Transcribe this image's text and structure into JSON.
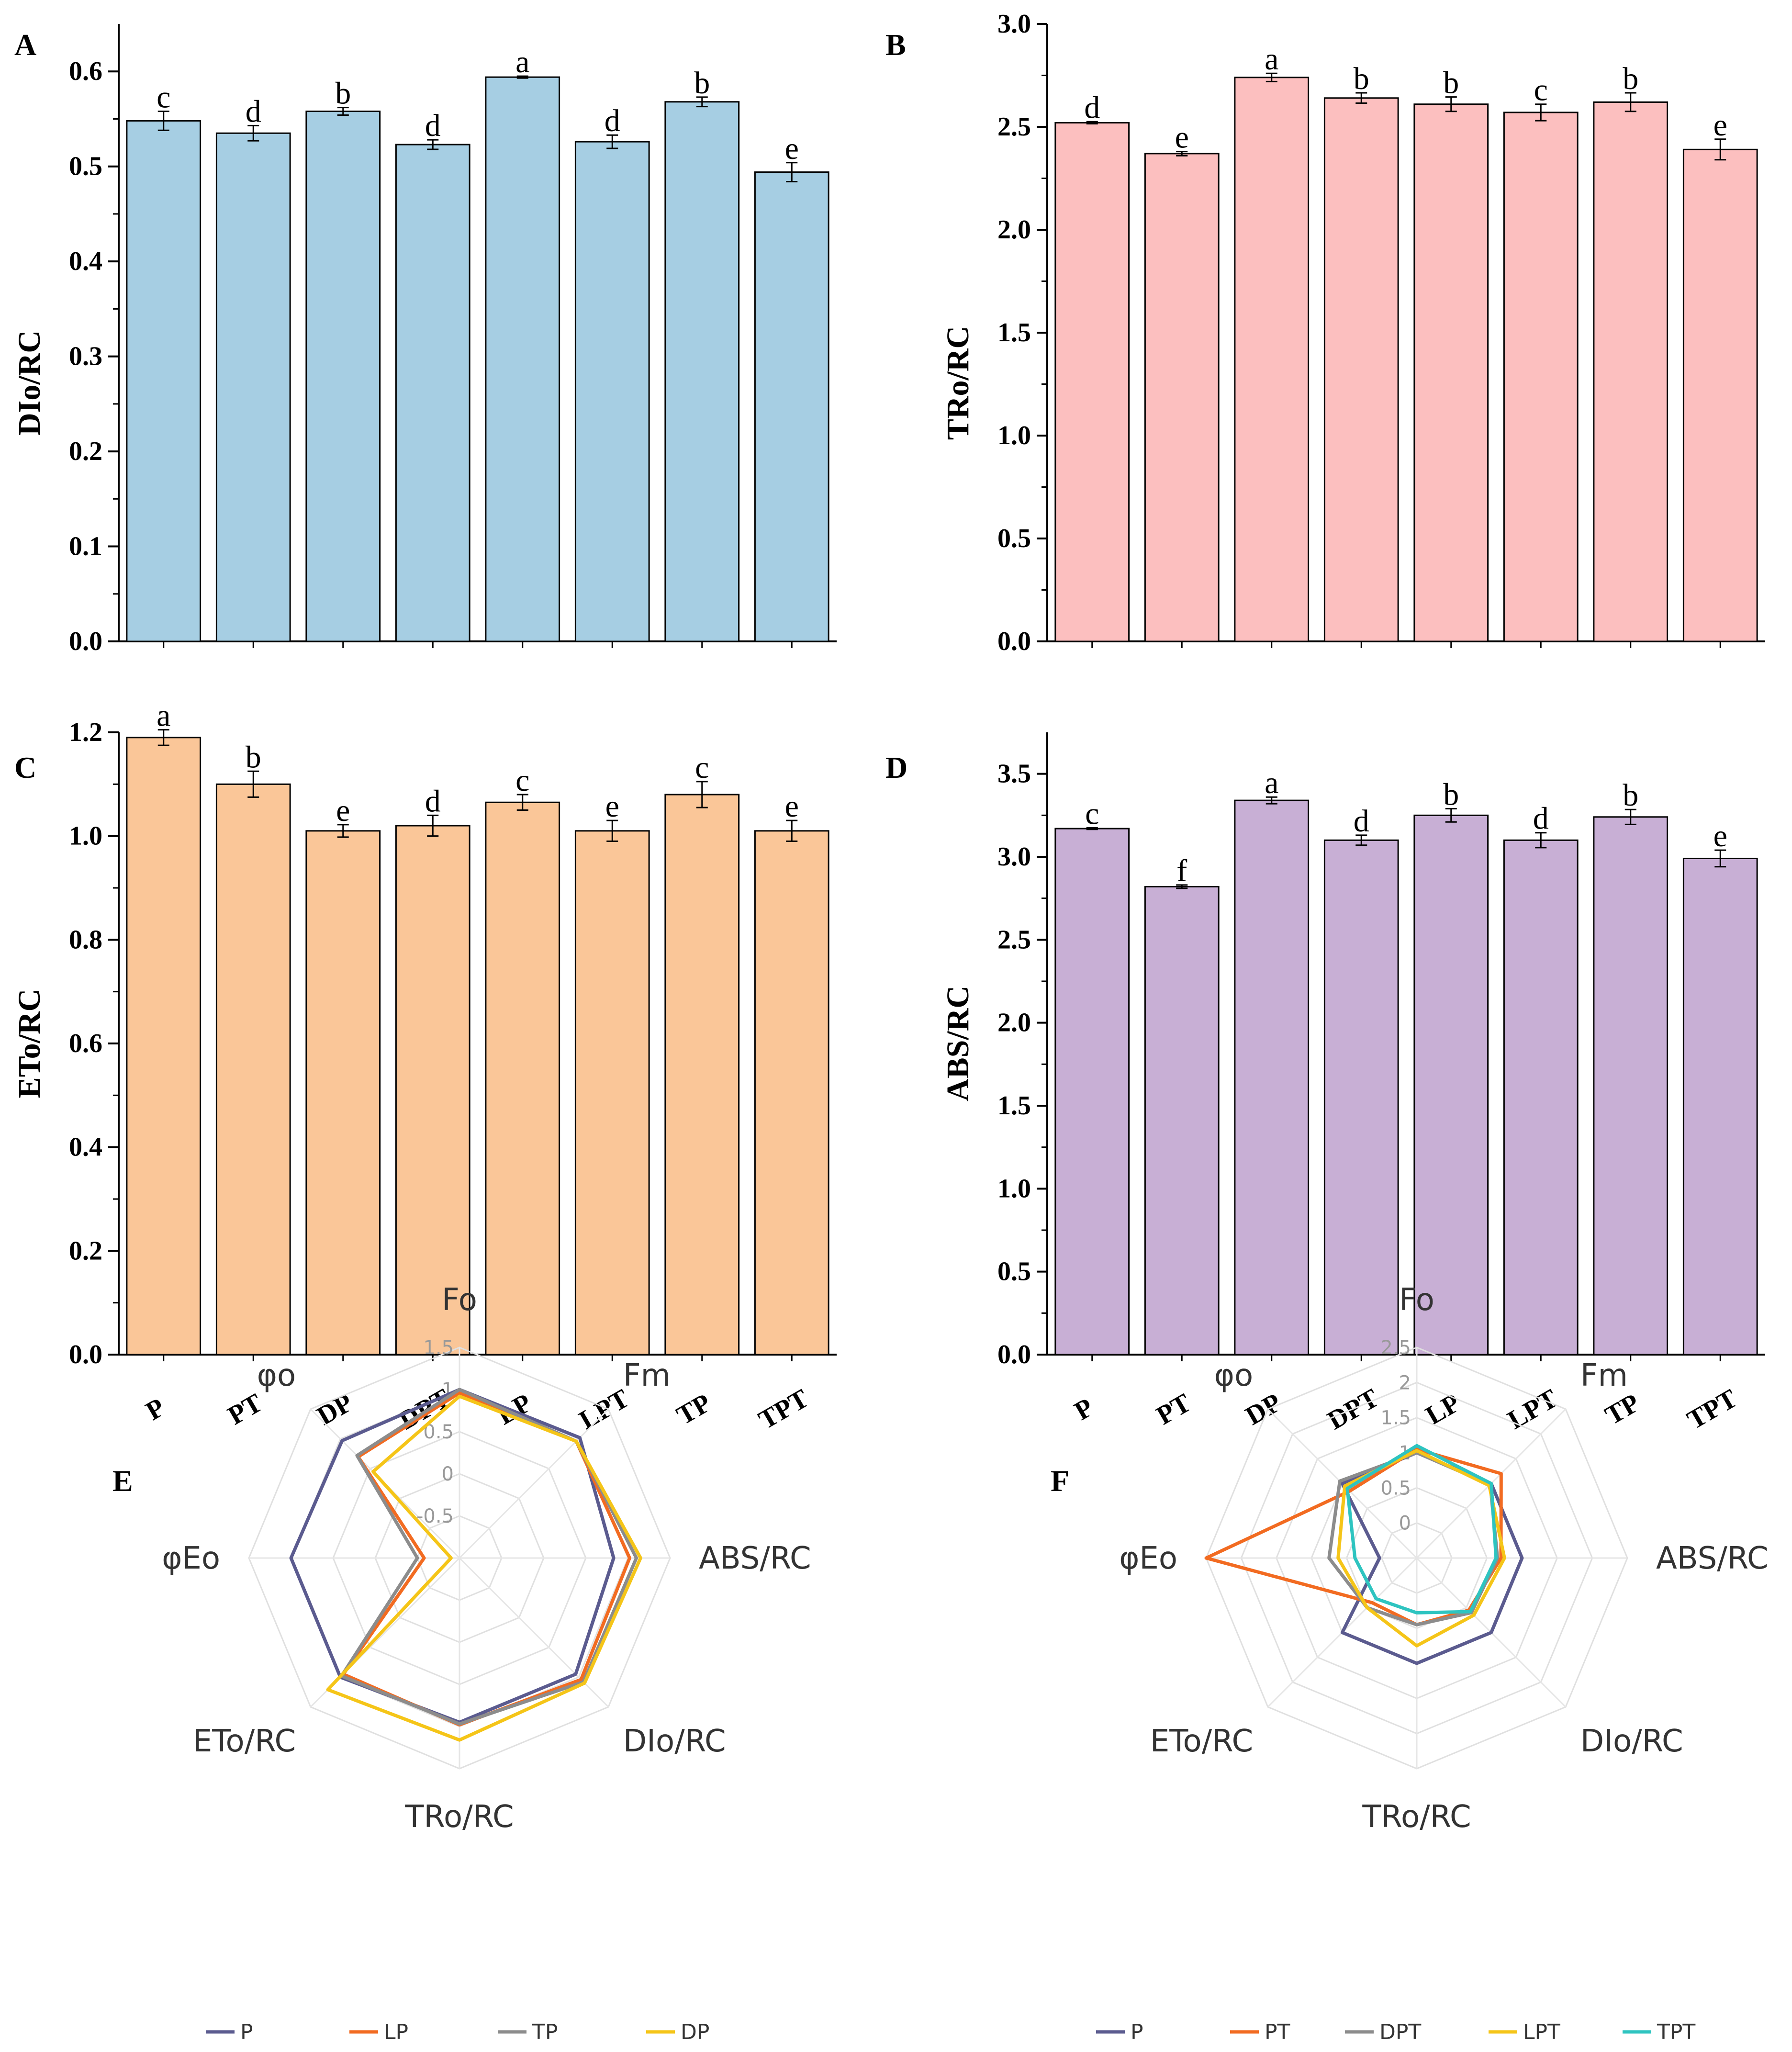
{
  "chart_data": [
    {
      "panel": "A",
      "type": "bar",
      "ylabel": "DIo/RC",
      "categories": [
        "P",
        "PT",
        "DP",
        "DPT",
        "LP",
        "LPT",
        "TP",
        "TPT"
      ],
      "values": [
        0.548,
        0.535,
        0.558,
        0.523,
        0.594,
        0.526,
        0.568,
        0.494
      ],
      "errors": [
        0.01,
        0.008,
        0.004,
        0.005,
        0.001,
        0.007,
        0.005,
        0.01
      ],
      "letters": [
        "c",
        "d",
        "b",
        "d",
        "a",
        "d",
        "b",
        "e"
      ],
      "ylim": [
        0,
        0.65
      ],
      "yticks": [
        "0.0",
        "0.1",
        "0.2",
        "0.3",
        "0.4",
        "0.5",
        "0.6"
      ],
      "color": "#a6cee3",
      "show_xlabels": false
    },
    {
      "panel": "B",
      "type": "bar",
      "ylabel": "TRo/RC",
      "categories": [
        "P",
        "PT",
        "DP",
        "DPT",
        "LP",
        "LPT",
        "TP",
        "TPT"
      ],
      "values": [
        2.52,
        2.37,
        2.74,
        2.64,
        2.61,
        2.57,
        2.62,
        2.39
      ],
      "errors": [
        0.005,
        0.01,
        0.02,
        0.025,
        0.035,
        0.04,
        0.045,
        0.05
      ],
      "letters": [
        "d",
        "e",
        "a",
        "b",
        "b",
        "c",
        "b",
        "e"
      ],
      "ylim": [
        0,
        3.0
      ],
      "yticks": [
        "0.0",
        "0.5",
        "1.0",
        "1.5",
        "2.0",
        "2.5",
        "3.0"
      ],
      "color": "#fcbfbf",
      "show_xlabels": false
    },
    {
      "panel": "C",
      "type": "bar",
      "ylabel": "ETo/RC",
      "categories": [
        "P",
        "PT",
        "DP",
        "DPT",
        "LP",
        "LPT",
        "TP",
        "TPT"
      ],
      "values": [
        1.19,
        1.1,
        1.01,
        1.02,
        1.065,
        1.01,
        1.08,
        1.01
      ],
      "errors": [
        0.015,
        0.025,
        0.012,
        0.02,
        0.015,
        0.02,
        0.025,
        0.02
      ],
      "letters": [
        "a",
        "b",
        "e",
        "d",
        "c",
        "e",
        "c",
        "e"
      ],
      "ylim": [
        0,
        1.2
      ],
      "yticks": [
        "0.0",
        "0.2",
        "0.4",
        "0.6",
        "0.8",
        "1.0",
        "1.2"
      ],
      "color": "#fac698",
      "show_xlabels": true
    },
    {
      "panel": "D",
      "type": "bar",
      "ylabel": "ABS/RC",
      "categories": [
        "P",
        "PT",
        "DP",
        "DPT",
        "LP",
        "LPT",
        "TP",
        "TPT"
      ],
      "values": [
        3.17,
        2.82,
        3.34,
        3.1,
        3.25,
        3.1,
        3.24,
        2.99
      ],
      "errors": [
        0.005,
        0.01,
        0.02,
        0.03,
        0.04,
        0.045,
        0.045,
        0.05
      ],
      "letters": [
        "c",
        "f",
        "a",
        "d",
        "b",
        "d",
        "b",
        "e"
      ],
      "ylim": [
        0,
        3.75
      ],
      "yticks": [
        "0.0",
        "0.5",
        "1.0",
        "1.5",
        "2.0",
        "2.5",
        "3.0",
        "3.5"
      ],
      "color": "#c8afd5",
      "show_xlabels": true
    },
    {
      "panel": "E",
      "type": "radar",
      "axes": [
        "Fo",
        "Fm",
        "ABS/RC",
        "DIo/RC",
        "TRo/RC",
        "ETo/RC",
        "φEo",
        "φo"
      ],
      "rmin": -1.0,
      "rmax": 1.5,
      "ticks": [
        "1.5",
        "1",
        "0.5",
        "0",
        "-0.5"
      ],
      "tick_values": [
        1.5,
        1.0,
        0.5,
        0.0,
        -0.5
      ],
      "series": [
        {
          "name": "P",
          "color": "#5b5b8f",
          "values": [
            1.0,
            1.02,
            0.83,
            0.95,
            0.95,
            1.0,
            1.0,
            0.97
          ]
        },
        {
          "name": "LP",
          "color": "#f26b21",
          "values": [
            0.96,
            0.96,
            1.02,
            1.04,
            0.98,
            0.95,
            -0.58,
            0.7
          ]
        },
        {
          "name": "TP",
          "color": "#8c8c8c",
          "values": [
            1.0,
            0.96,
            1.1,
            1.08,
            0.97,
            0.98,
            -0.5,
            0.72
          ]
        },
        {
          "name": "DP",
          "color": "#f5c518",
          "values": [
            0.92,
            0.96,
            1.15,
            1.1,
            1.16,
            1.21,
            -0.9,
            0.45
          ]
        }
      ]
    },
    {
      "panel": "F",
      "type": "radar",
      "axes": [
        "Fo",
        "Fm",
        "ABS/RC",
        "DIo/RC",
        "TRo/RC",
        "ETo/RC",
        "φEo",
        "φo"
      ],
      "rmin": -0.5,
      "rmax": 2.5,
      "ticks": [
        "2.5",
        "2",
        "1.5",
        "1",
        "0.5",
        "0"
      ],
      "tick_values": [
        2.5,
        2.0,
        1.5,
        1.0,
        0.5,
        0.0
      ],
      "series": [
        {
          "name": "P",
          "color": "#5b5b8f",
          "values": [
            1.0,
            1.0,
            1.0,
            1.0,
            1.0,
            1.0,
            0.03,
            1.0
          ]
        },
        {
          "name": "PT",
          "color": "#f26b21",
          "values": [
            1.05,
            1.2,
            0.7,
            0.55,
            0.45,
            0.4,
            2.5,
            0.85
          ]
        },
        {
          "name": "DPT",
          "color": "#8c8c8c",
          "values": [
            1.0,
            0.98,
            0.65,
            0.6,
            0.45,
            0.5,
            0.75,
            1.05
          ]
        },
        {
          "name": "LPT",
          "color": "#f5c518",
          "values": [
            1.03,
            0.96,
            0.75,
            0.65,
            0.75,
            0.5,
            0.62,
            0.95
          ]
        },
        {
          "name": "TPT",
          "color": "#2ec4c0",
          "values": [
            1.1,
            1.0,
            0.63,
            0.58,
            0.28,
            0.32,
            0.38,
            0.9
          ]
        }
      ]
    }
  ]
}
